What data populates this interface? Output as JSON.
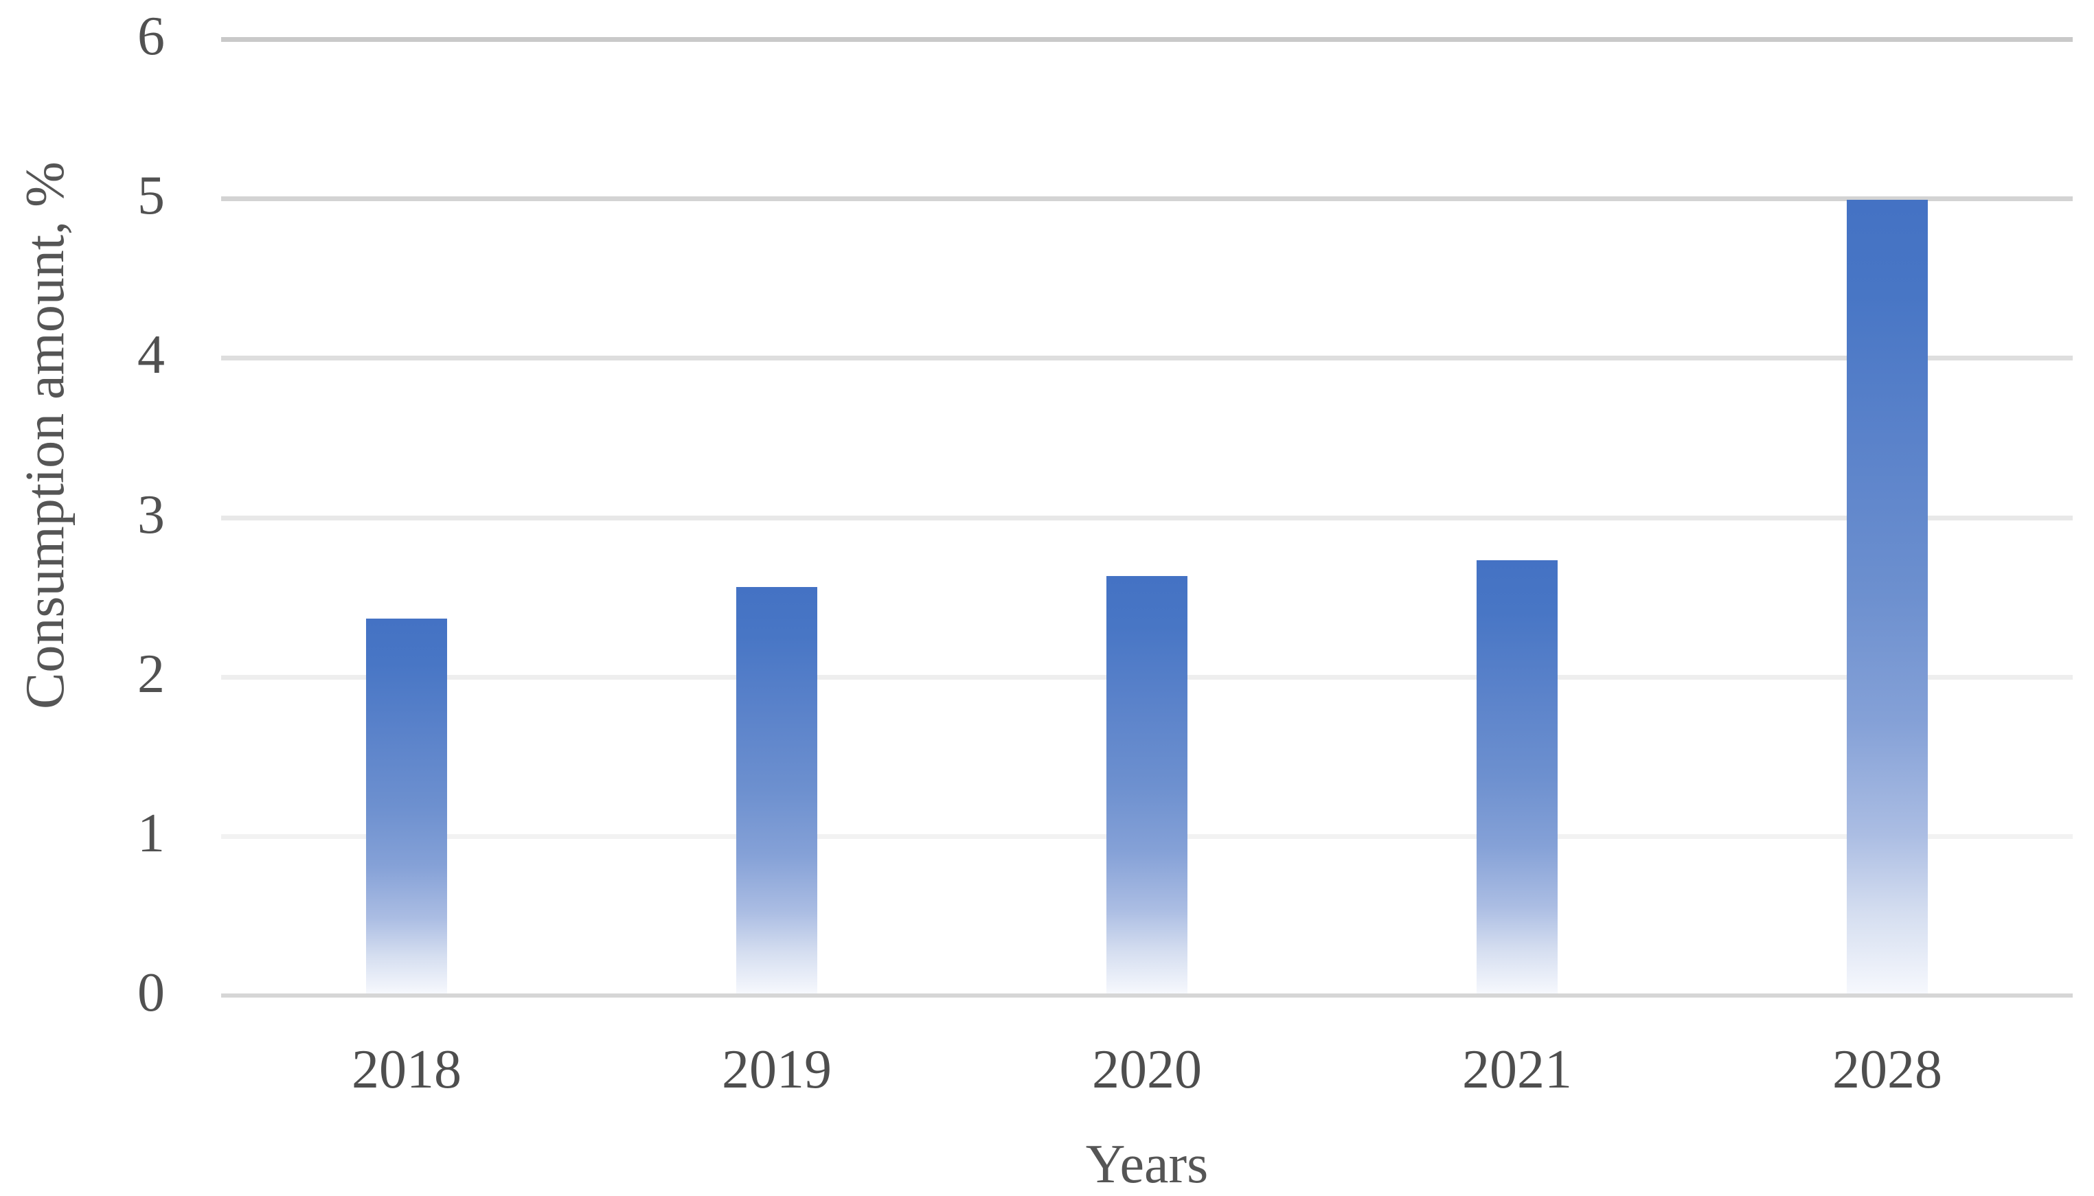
{
  "chart_data": {
    "type": "bar",
    "xlabel": "Years",
    "ylabel": "Consumption amount, %",
    "categories": [
      "2018",
      "2019",
      "2020",
      "2021",
      "2028"
    ],
    "values": [
      2.35,
      2.55,
      2.62,
      2.72,
      4.98
    ],
    "ylim": [
      0,
      6
    ],
    "yticks": [
      0,
      1,
      2,
      3,
      4,
      5,
      6
    ],
    "grid": true,
    "legend": false,
    "colors": {
      "bar_top": "#4472C4",
      "bar_bottom": "#F6F8FD",
      "bar_gradient_stops": [
        "#4472C4 0%",
        "#4876C5 12%",
        "#5A82CA 30%",
        "#6D90CF 50%",
        "#85A1D7 66%",
        "#ABBDE3 80%",
        "#D5DEF0 90%",
        "#F6F8FD 100%"
      ],
      "axis_line": "#D6D6D6",
      "gridlines": {
        "1": "#F2F2F2",
        "2": "#EEEEEE",
        "3": "#E8E8E8",
        "4": "#DEDEDE",
        "5": "#D3D3D3",
        "6": "#C9C9C9"
      },
      "text": "#555555"
    }
  }
}
